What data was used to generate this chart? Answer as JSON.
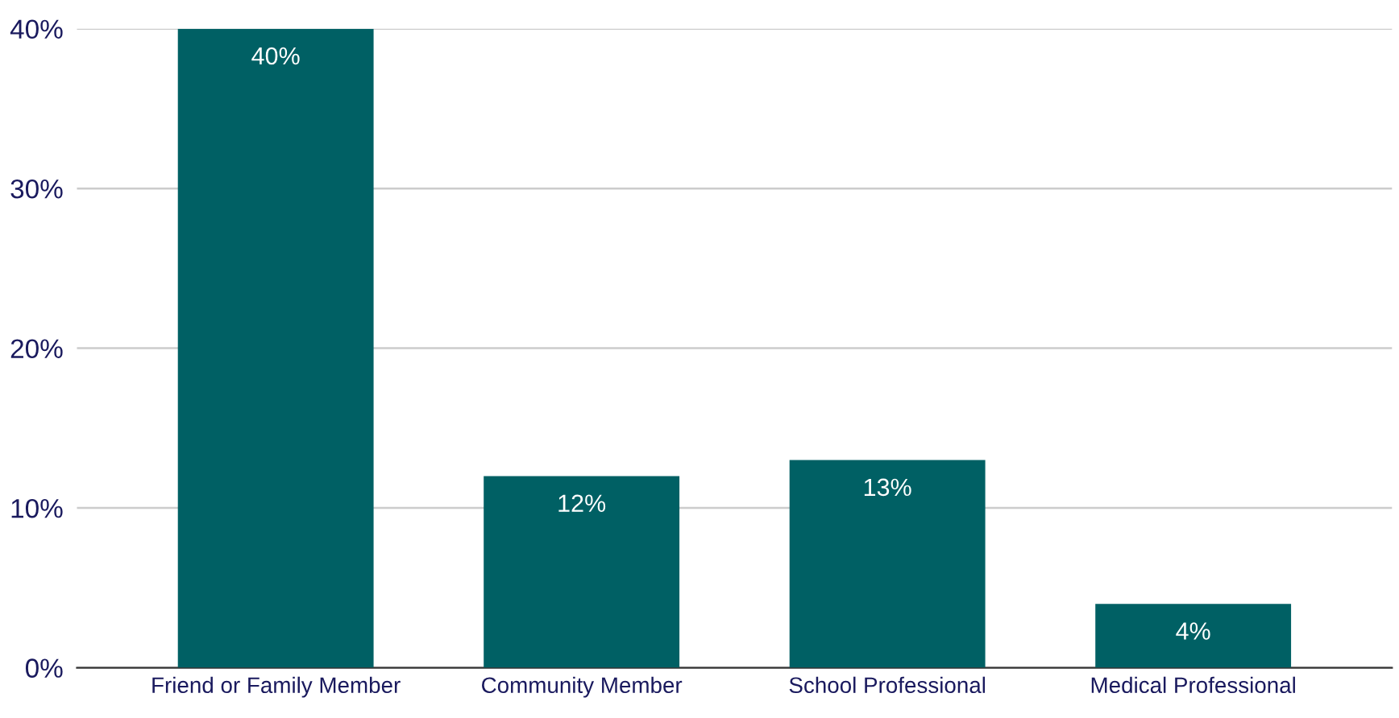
{
  "chart_data": {
    "type": "bar",
    "categories": [
      "Friend or Family Member",
      "Community Member",
      "School Professional",
      "Medical Professional"
    ],
    "values": [
      40,
      12,
      13,
      4
    ],
    "value_labels": [
      "40%",
      "12%",
      "13%",
      "4%"
    ],
    "color": "#006064",
    "ylim": [
      0,
      40
    ],
    "yticks": [
      {
        "value": 0,
        "label": "0%"
      },
      {
        "value": 10,
        "label": "10%"
      },
      {
        "value": 20,
        "label": "20%"
      },
      {
        "value": 30,
        "label": "30%"
      },
      {
        "value": 40,
        "label": "40%"
      }
    ],
    "grid": "y",
    "legend": false
  }
}
